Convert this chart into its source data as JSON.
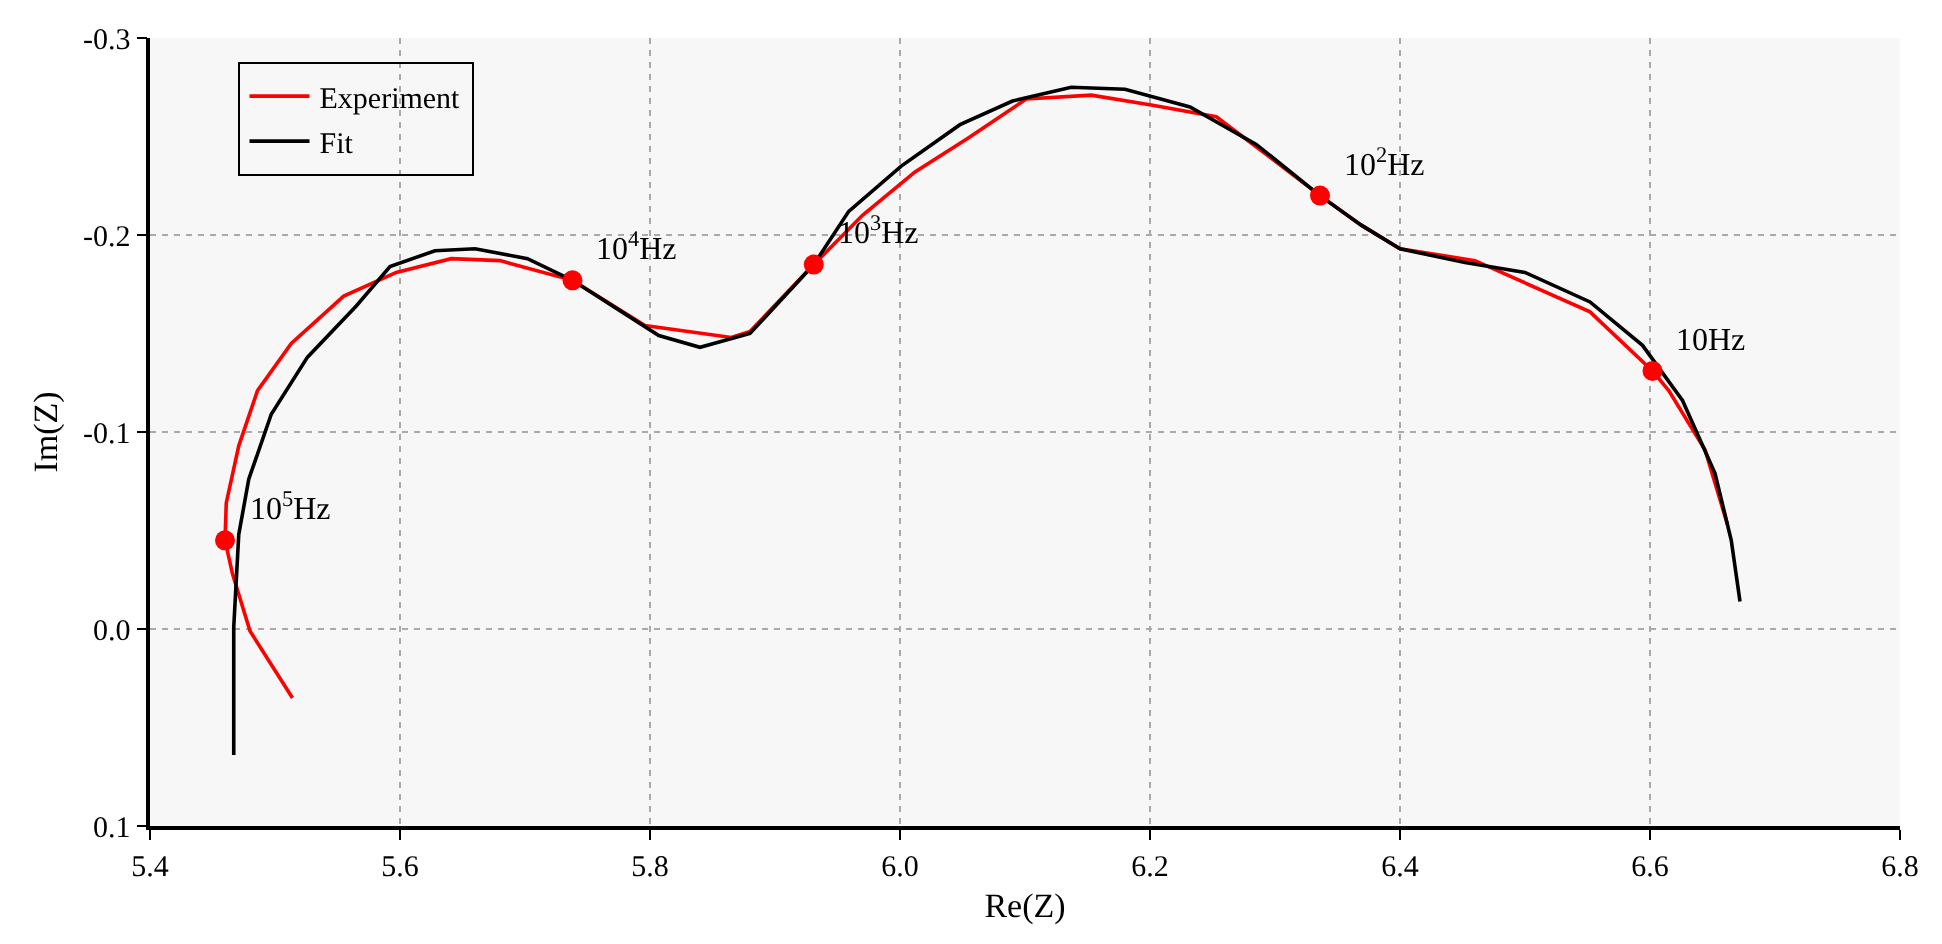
{
  "chart_data": {
    "type": "line",
    "xlabel": "Re(Z)",
    "ylabel": "Im(Z)",
    "xlim": [
      5.4,
      6.8
    ],
    "xticks": [
      5.4,
      5.6,
      5.8,
      {
        "value": 6,
        "label": "6.0"
      },
      6.2,
      6.4,
      6.6,
      6.8
    ],
    "ylim": [
      0.1,
      -0.3
    ],
    "yticks": [
      -0.3,
      -0.2,
      -0.1,
      {
        "value": 0,
        "label": "0.0"
      },
      0.1
    ],
    "grid": true,
    "legend": "top left",
    "line_style": "solid",
    "marker": "none",
    "series": [
      {
        "name": "Experiment",
        "color": "#ff0000",
        "x": [
          5.514,
          5.48,
          5.466,
          5.46,
          5.461,
          5.471,
          5.486,
          5.513,
          5.555,
          5.597,
          5.641,
          5.68,
          5.738,
          5.796,
          5.865,
          5.88,
          5.931,
          5.97,
          6.012,
          6.054,
          6.101,
          6.153,
          6.201,
          6.253,
          6.295,
          6.336,
          6.369,
          6.4,
          6.46,
          6.552,
          6.602,
          6.615,
          6.644,
          6.662
        ],
        "values": [
          0.035,
          0.001,
          -0.028,
          -0.045,
          -0.064,
          -0.093,
          -0.121,
          -0.145,
          -0.169,
          -0.181,
          -0.188,
          -0.187,
          -0.177,
          -0.154,
          -0.148,
          -0.151,
          -0.185,
          -0.21,
          -0.232,
          -0.249,
          -0.269,
          -0.271,
          -0.266,
          -0.26,
          -0.24,
          -0.22,
          -0.205,
          -0.193,
          -0.187,
          -0.161,
          -0.131,
          -0.121,
          -0.091,
          -0.053
        ]
      },
      {
        "name": "Fit",
        "color": "#000000",
        "x": [
          5.467,
          5.467,
          5.471,
          5.479,
          5.497,
          5.526,
          5.565,
          5.592,
          5.628,
          5.66,
          5.702,
          5.738,
          5.775,
          5.807,
          5.84,
          5.88,
          5.931,
          5.959,
          6.001,
          6.048,
          6.09,
          6.137,
          6.18,
          6.232,
          6.285,
          6.336,
          6.369,
          6.4,
          6.452,
          6.5,
          6.552,
          6.594,
          6.626,
          6.652,
          6.665,
          6.672
        ],
        "values": [
          0.064,
          -0.001,
          -0.048,
          -0.076,
          -0.109,
          -0.138,
          -0.164,
          -0.184,
          -0.192,
          -0.193,
          -0.188,
          -0.177,
          -0.162,
          -0.149,
          -0.143,
          -0.15,
          -0.185,
          -0.212,
          -0.235,
          -0.256,
          -0.268,
          -0.275,
          -0.274,
          -0.265,
          -0.246,
          -0.22,
          -0.205,
          -0.193,
          -0.186,
          -0.181,
          -0.166,
          -0.144,
          -0.116,
          -0.079,
          -0.045,
          -0.014
        ]
      },
      {
        "type": "scatter",
        "marker": "circle",
        "color": "#ff0000",
        "x": [
          5.46,
          5.738,
          5.931,
          6.336,
          6.602
        ],
        "values": [
          -0.045,
          -0.177,
          -0.185,
          -0.22,
          -0.131
        ]
      }
    ],
    "annotations": [
      {
        "text": "10$^{5}$Hz",
        "x": 5.46,
        "y": -0.045
      },
      {
        "text": "10$^{4}$Hz",
        "x": 5.738,
        "y": -0.177
      },
      {
        "text": "10$^{3}$Hz",
        "x": 5.931,
        "y": -0.185
      },
      {
        "text": "10$^{2}$Hz",
        "x": 6.336,
        "y": -0.22
      },
      {
        "text": "10Hz",
        "x": 6.602,
        "y": -0.131
      }
    ]
  }
}
